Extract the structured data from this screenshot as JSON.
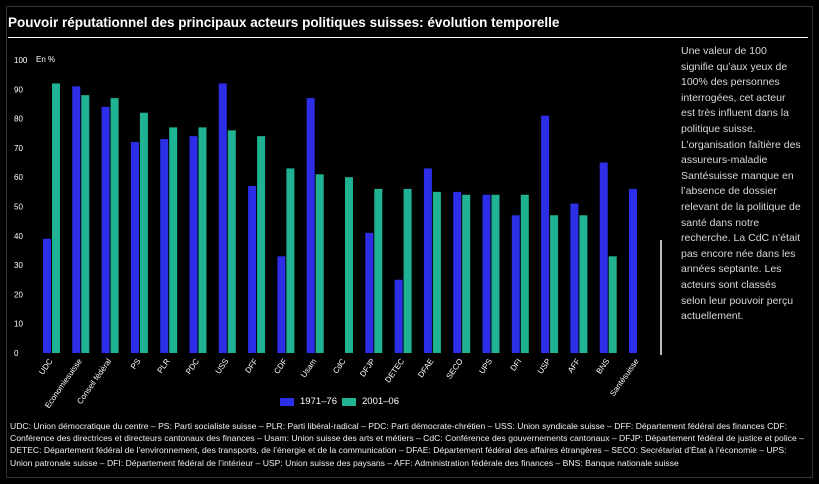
{
  "title": "Pouvoir réputationnel des principaux acteurs politiques suisses: évolution temporelle",
  "note": "Une valeur de 100 signifie qu’aux yeux de 100% des personnes interrogées, cet acteur est très influent dans la politique suisse. L’organisation faîtière des assureurs-maladie Santésuisse manque en l’absence de dossier relevant de la politique de santé dans notre recherche. La CdC n’était pas encore née dans les années septante. Les acteurs sont classés selon leur pouvoir perçu actuellement.",
  "footnote": "UDC: Union démocratique du centre – PS: Parti socialiste suisse – PLR: Parti libéral-radical – PDC: Parti démocrate-chrétien – USS: Union syndicale suisse – DFF: Département fédéral des finances CDF: Conférence des directrices et directeurs cantonaux des finances – Usam: Union suisse des arts et métiers – CdC: Conférence des gouvernements cantonaux – DFJP: Département fédéral de justice et police – DETEC: Département fédéral de l’environnement, des transports, de l’énergie et de la communication – DFAE: Département fédéral des affaires étrangères – SECO: Secrétariat d’État à l’économie – UPS: Union patronale suisse – DFI: Département fédéral de l’intérieur – USP: Union suisse des paysans – AFF: Administration fédérale des finances – BNS: Banque nationale suisse",
  "colors": {
    "series1": "#2d2ee8",
    "series2": "#1fb394",
    "text": "#ffffff"
  },
  "chart_data": {
    "type": "bar",
    "title": "Pouvoir réputationnel des principaux acteurs politiques suisses: évolution temporelle",
    "ylabel": "En %",
    "ylim": [
      0,
      100
    ],
    "yticks": [
      "0",
      "10",
      "20",
      "30",
      "40",
      "50",
      "60",
      "70",
      "80",
      "90",
      "100"
    ],
    "grid": false,
    "legend_position": "bottom",
    "categories": [
      "UDC",
      "Economiesuisse",
      "Conseil fédéral",
      "PS",
      "PLR",
      "PDC",
      "USS",
      "DFF",
      "CDF",
      "Usam",
      "CdC",
      "DFJP",
      "DETEC",
      "DFAE",
      "SECO",
      "UPS",
      "DFI",
      "USP",
      "AFF",
      "BNS",
      "Santésuisse"
    ],
    "series": [
      {
        "name": "1971–76",
        "values": [
          39,
          91,
          84,
          72,
          73,
          74,
          92,
          57,
          33,
          87,
          null,
          41,
          25,
          63,
          55,
          54,
          47,
          81,
          51,
          65,
          56
        ]
      },
      {
        "name": "2001–06",
        "values": [
          92,
          88,
          87,
          82,
          77,
          77,
          76,
          74,
          63,
          61,
          60,
          56,
          56,
          55,
          54,
          54,
          54,
          47,
          47,
          33,
          null
        ]
      }
    ]
  }
}
